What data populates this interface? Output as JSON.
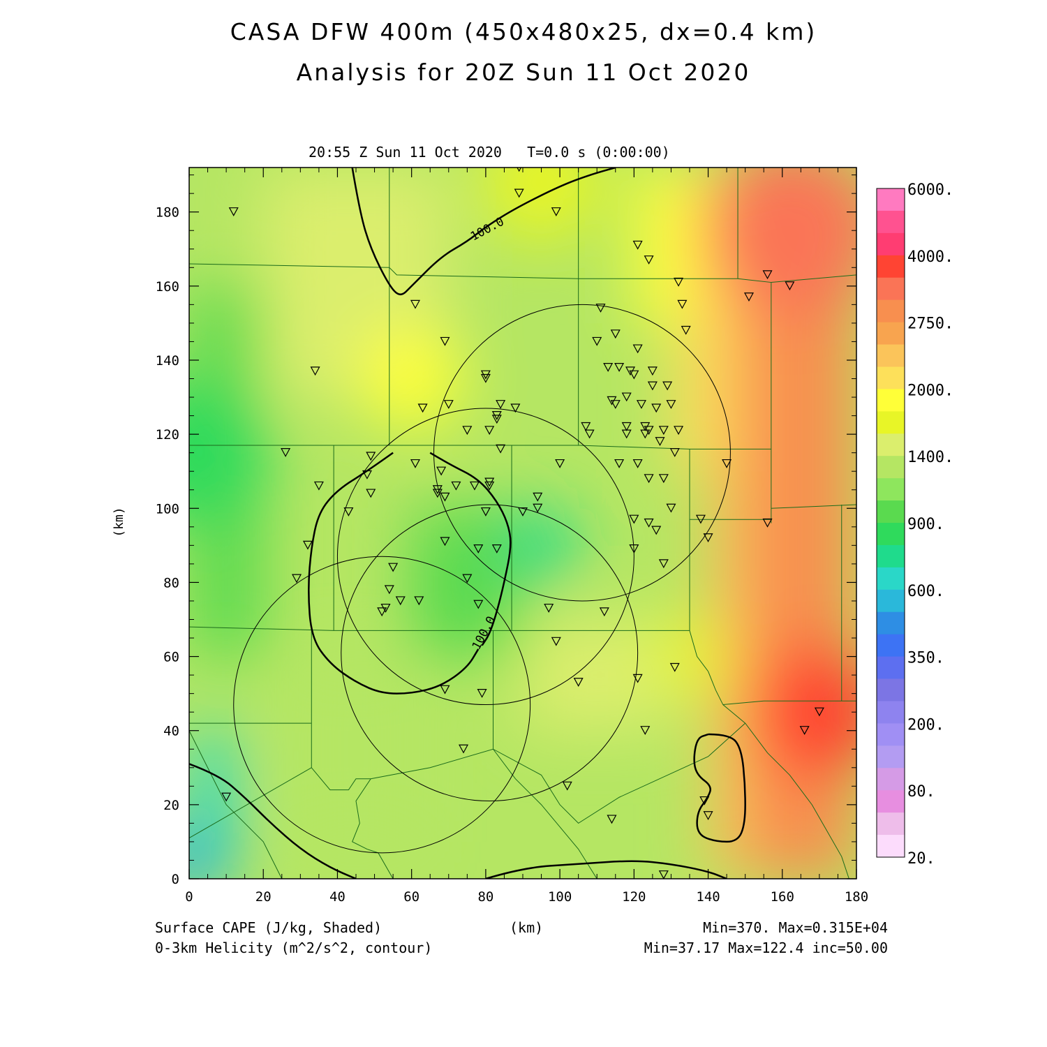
{
  "header": {
    "title_line1": "CASA DFW 400m (450x480x25, dx=0.4 km)",
    "title_line2": "Analysis for 20Z Sun 11 Oct 2020",
    "subtitle": "20:55 Z Sun 11 Oct 2020   T=0.0 s (0:00:00)"
  },
  "footer": {
    "left_line1": "Surface CAPE (J/kg, Shaded)",
    "left_line2": "0-3km Helicity (m^2/s^2, contour)",
    "center": "(km)",
    "right_line1": "Min=370. Max=0.315E+04",
    "right_line2": "Min=37.17 Max=122.4 inc=50.00"
  },
  "chart_data": {
    "type": "heatmap",
    "xlabel": "(km)",
    "ylabel": "(km)",
    "xlim": [
      0,
      180
    ],
    "ylim": [
      0,
      192
    ],
    "x_ticks": [
      0,
      20,
      40,
      60,
      80,
      100,
      120,
      140,
      160,
      180
    ],
    "y_ticks": [
      0,
      20,
      40,
      60,
      80,
      100,
      120,
      140,
      160,
      180
    ],
    "colorbar": {
      "labels": [
        "6000.",
        "4000.",
        "2750.",
        "2000.",
        "1400.",
        "900.",
        "600.",
        "350.",
        "200.",
        "80.",
        "20."
      ],
      "colors": [
        "#ff7ac0",
        "#ff5290",
        "#ff3d72",
        "#ff4433",
        "#fa7456",
        "#f88f4f",
        "#f8a44f",
        "#fbc45a",
        "#fde05a",
        "#ffff38",
        "#e8f527",
        "#dbee6d",
        "#b5e663",
        "#8ee65d",
        "#5ada4f",
        "#2fda5c",
        "#1fdb8c",
        "#2ad7c8",
        "#2ab8da",
        "#2e8ee4",
        "#3d73f4",
        "#5d6ff0",
        "#7c75e4",
        "#8e83ef",
        "#a08ff4",
        "#b39cf2",
        "#d59be6",
        "#e78ee0",
        "#eebdea",
        "#fcdcfc"
      ]
    },
    "contour_labels": [
      "100.0",
      "100.0"
    ],
    "cape_field_hotspots": [
      {
        "x": 170,
        "y": 45,
        "value": 3150,
        "radius": 18
      },
      {
        "x": 163,
        "y": 175,
        "value": 2900,
        "radius": 24
      },
      {
        "x": 95,
        "y": 90,
        "value": 700,
        "radius": 10
      },
      {
        "x": 0,
        "y": 5,
        "value": 370,
        "radius": 10
      },
      {
        "x": 2,
        "y": 115,
        "value": 800,
        "radius": 20
      },
      {
        "x": 60,
        "y": 135,
        "value": 1600,
        "radius": 14
      },
      {
        "x": 95,
        "y": 188,
        "value": 1500,
        "radius": 16
      },
      {
        "x": 135,
        "y": 60,
        "value": 1500,
        "radius": 10
      }
    ],
    "radar_rings": [
      {
        "cx": 106,
        "cy": 115,
        "r": 40
      },
      {
        "cx": 80,
        "cy": 87,
        "r": 40
      },
      {
        "cx": 52,
        "cy": 47,
        "r": 40
      },
      {
        "cx": 81,
        "cy": 61,
        "r": 40
      }
    ],
    "helicity_contours": [
      {
        "points": [
          [
            44,
            192
          ],
          [
            46,
            180
          ],
          [
            49,
            170
          ],
          [
            54,
            160
          ],
          [
            57,
            157
          ],
          [
            60,
            160
          ],
          [
            68,
            168
          ],
          [
            75,
            172
          ],
          [
            80,
            176
          ],
          [
            88,
            181
          ],
          [
            100,
            187
          ],
          [
            108,
            190
          ],
          [
            115,
            192
          ]
        ]
      },
      {
        "points": [
          [
            55,
            115
          ],
          [
            48,
            110
          ],
          [
            40,
            105
          ],
          [
            35,
            99
          ],
          [
            33,
            90
          ],
          [
            32,
            78
          ],
          [
            33,
            65
          ],
          [
            38,
            58
          ],
          [
            45,
            53
          ],
          [
            52,
            50
          ],
          [
            60,
            50
          ],
          [
            68,
            52
          ],
          [
            75,
            57
          ],
          [
            78,
            62
          ]
        ]
      },
      {
        "points": [
          [
            65,
            115
          ],
          [
            70,
            112
          ],
          [
            78,
            108
          ],
          [
            83,
            102
          ],
          [
            86,
            96
          ],
          [
            87,
            90
          ],
          [
            85,
            80
          ],
          [
            83,
            72
          ],
          [
            81,
            66
          ],
          [
            79,
            63
          ]
        ]
      },
      {
        "points": [
          [
            0,
            31
          ],
          [
            8,
            28
          ],
          [
            15,
            22
          ],
          [
            22,
            15
          ],
          [
            30,
            8
          ],
          [
            38,
            3
          ],
          [
            45,
            0
          ]
        ]
      },
      {
        "points": [
          [
            80,
            0
          ],
          [
            90,
            3
          ],
          [
            105,
            4
          ],
          [
            120,
            5
          ],
          [
            130,
            4
          ],
          [
            140,
            2
          ],
          [
            145,
            0
          ]
        ]
      },
      {
        "points": [
          [
            140,
            39
          ],
          [
            146,
            39
          ],
          [
            149,
            35
          ],
          [
            150,
            25
          ],
          [
            150,
            15
          ],
          [
            148,
            10
          ],
          [
            142,
            10
          ],
          [
            137,
            12
          ],
          [
            137,
            18
          ],
          [
            140,
            22
          ],
          [
            141,
            25
          ],
          [
            137,
            28
          ],
          [
            136,
            32
          ],
          [
            137,
            38
          ],
          [
            140,
            39
          ]
        ]
      }
    ],
    "stations": [
      [
        12,
        180
      ],
      [
        89,
        192
      ],
      [
        89,
        185
      ],
      [
        99,
        180
      ],
      [
        61,
        155
      ],
      [
        69,
        145
      ],
      [
        80,
        135
      ],
      [
        80,
        136
      ],
      [
        63,
        127
      ],
      [
        70,
        128
      ],
      [
        84,
        128
      ],
      [
        88,
        127
      ],
      [
        83,
        125
      ],
      [
        83,
        124
      ],
      [
        75,
        121
      ],
      [
        81,
        121
      ],
      [
        68,
        110
      ],
      [
        61,
        112
      ],
      [
        84,
        116
      ],
      [
        49,
        114
      ],
      [
        48,
        109
      ],
      [
        49,
        104
      ],
      [
        35,
        106
      ],
      [
        26,
        115
      ],
      [
        34,
        137
      ],
      [
        43,
        99
      ],
      [
        32,
        90
      ],
      [
        29,
        81
      ],
      [
        54,
        78
      ],
      [
        55,
        84
      ],
      [
        53,
        73
      ],
      [
        52,
        72
      ],
      [
        57,
        75
      ],
      [
        62,
        75
      ],
      [
        67,
        104
      ],
      [
        67,
        105
      ],
      [
        72,
        106
      ],
      [
        77,
        106
      ],
      [
        81,
        106
      ],
      [
        81,
        107
      ],
      [
        80,
        99
      ],
      [
        78,
        89
      ],
      [
        83,
        89
      ],
      [
        69,
        91
      ],
      [
        75,
        81
      ],
      [
        78,
        74
      ],
      [
        69,
        51
      ],
      [
        79,
        50
      ],
      [
        74,
        35
      ],
      [
        10,
        22
      ],
      [
        90,
        99
      ],
      [
        94,
        103
      ],
      [
        94,
        100
      ],
      [
        100,
        112
      ],
      [
        97,
        73
      ],
      [
        99,
        64
      ],
      [
        105,
        53
      ],
      [
        102,
        25
      ],
      [
        112,
        72
      ],
      [
        110,
        145
      ],
      [
        111,
        154
      ],
      [
        113,
        138
      ],
      [
        114,
        129
      ],
      [
        115,
        128
      ],
      [
        115,
        147
      ],
      [
        116,
        138
      ],
      [
        121,
        143
      ],
      [
        119,
        137
      ],
      [
        120,
        136
      ],
      [
        122,
        128
      ],
      [
        123,
        122
      ],
      [
        124,
        121
      ],
      [
        123,
        120
      ],
      [
        125,
        137
      ],
      [
        125,
        133
      ],
      [
        118,
        122
      ],
      [
        118,
        130
      ],
      [
        118,
        120
      ],
      [
        121,
        112
      ],
      [
        120,
        97
      ],
      [
        120,
        89
      ],
      [
        124,
        96
      ],
      [
        124,
        108
      ],
      [
        126,
        94
      ],
      [
        127,
        118
      ],
      [
        126,
        127
      ],
      [
        128,
        121
      ],
      [
        129,
        133
      ],
      [
        130,
        128
      ],
      [
        131,
        115
      ],
      [
        128,
        108
      ],
      [
        130,
        100
      ],
      [
        128,
        85
      ],
      [
        132,
        121
      ],
      [
        132,
        161
      ],
      [
        133,
        155
      ],
      [
        134,
        148
      ],
      [
        138,
        97
      ],
      [
        140,
        92
      ],
      [
        145,
        112
      ],
      [
        151,
        157
      ],
      [
        156,
        96
      ],
      [
        156,
        163
      ],
      [
        162,
        160
      ],
      [
        124,
        167
      ],
      [
        121,
        171
      ],
      [
        123,
        40
      ],
      [
        121,
        54
      ],
      [
        131,
        57
      ],
      [
        114,
        16
      ],
      [
        139,
        21
      ],
      [
        140,
        17
      ],
      [
        128,
        1
      ],
      [
        166,
        40
      ],
      [
        170,
        45
      ],
      [
        116,
        112
      ],
      [
        108,
        120
      ],
      [
        107,
        122
      ],
      [
        69,
        103
      ]
    ],
    "boundaries": [
      {
        "points": [
          [
            0,
            166
          ],
          [
            54,
            165
          ],
          [
            54,
            192
          ]
        ]
      },
      {
        "points": [
          [
            54,
            165
          ],
          [
            56,
            163
          ],
          [
            105,
            162
          ],
          [
            105,
            192
          ]
        ]
      },
      {
        "points": [
          [
            105,
            162
          ],
          [
            140,
            162
          ],
          [
            148,
            162
          ],
          [
            148,
            192
          ]
        ]
      },
      {
        "points": [
          [
            148,
            162
          ],
          [
            157,
            161
          ],
          [
            157,
            135
          ],
          [
            157,
            100
          ],
          [
            157,
            96
          ]
        ]
      },
      {
        "points": [
          [
            157,
            161
          ],
          [
            180,
            163
          ]
        ]
      },
      {
        "points": [
          [
            157,
            100
          ],
          [
            180,
            101
          ]
        ]
      },
      {
        "points": [
          [
            54,
            165
          ],
          [
            54,
            117
          ]
        ]
      },
      {
        "points": [
          [
            0,
            117
          ],
          [
            39,
            117
          ],
          [
            55,
            117
          ],
          [
            105,
            117
          ],
          [
            135,
            116
          ],
          [
            157,
            116
          ]
        ]
      },
      {
        "points": [
          [
            105,
            162
          ],
          [
            105,
            117
          ]
        ]
      },
      {
        "points": [
          [
            39,
            117
          ],
          [
            39,
            67
          ]
        ]
      },
      {
        "points": [
          [
            0,
            68
          ],
          [
            39,
            67
          ],
          [
            87,
            67
          ],
          [
            135,
            67
          ]
        ]
      },
      {
        "points": [
          [
            87,
            117
          ],
          [
            87,
            67
          ]
        ]
      },
      {
        "points": [
          [
            135,
            116
          ],
          [
            135,
            67
          ],
          [
            137,
            60
          ],
          [
            140,
            56
          ]
        ]
      },
      {
        "points": [
          [
            135,
            97
          ],
          [
            157,
            97
          ]
        ]
      },
      {
        "points": [
          [
            176,
            101
          ],
          [
            176,
            48
          ]
        ]
      },
      {
        "points": [
          [
            144,
            47
          ],
          [
            155,
            48
          ],
          [
            176,
            48
          ],
          [
            180,
            48
          ]
        ]
      },
      {
        "points": [
          [
            140,
            56
          ],
          [
            142,
            51
          ],
          [
            144,
            47
          ]
        ]
      },
      {
        "points": [
          [
            144,
            47
          ],
          [
            150,
            42
          ],
          [
            156,
            34
          ],
          [
            162,
            28
          ],
          [
            168,
            20
          ],
          [
            172,
            13
          ],
          [
            176,
            6
          ],
          [
            178,
            0
          ]
        ]
      },
      {
        "points": [
          [
            33,
            68
          ],
          [
            33,
            42
          ]
        ]
      },
      {
        "points": [
          [
            0,
            42
          ],
          [
            33,
            42
          ]
        ]
      },
      {
        "points": [
          [
            33,
            42
          ],
          [
            33,
            30
          ],
          [
            38,
            24
          ],
          [
            43,
            24
          ],
          [
            45,
            27
          ],
          [
            49,
            27
          ]
        ]
      },
      {
        "points": [
          [
            49,
            27
          ],
          [
            65,
            30
          ],
          [
            82,
            35
          ],
          [
            95,
            28
          ],
          [
            100,
            20
          ],
          [
            105,
            15
          ],
          [
            116,
            22
          ],
          [
            140,
            33
          ],
          [
            150,
            42
          ]
        ]
      },
      {
        "points": [
          [
            82,
            67
          ],
          [
            82,
            35
          ]
        ]
      },
      {
        "points": [
          [
            0,
            40
          ],
          [
            5,
            30
          ],
          [
            10,
            20
          ],
          [
            20,
            10
          ],
          [
            25,
            0
          ]
        ]
      },
      {
        "points": [
          [
            0,
            11
          ],
          [
            33,
            30
          ]
        ]
      },
      {
        "points": [
          [
            49,
            27
          ],
          [
            45,
            21
          ],
          [
            46,
            15
          ],
          [
            44,
            10
          ],
          [
            48,
            8
          ],
          [
            51,
            7
          ],
          [
            55,
            0
          ]
        ]
      },
      {
        "points": [
          [
            82,
            35
          ],
          [
            88,
            27
          ],
          [
            95,
            20
          ],
          [
            100,
            14
          ],
          [
            105,
            8
          ],
          [
            110,
            0
          ]
        ]
      }
    ]
  }
}
